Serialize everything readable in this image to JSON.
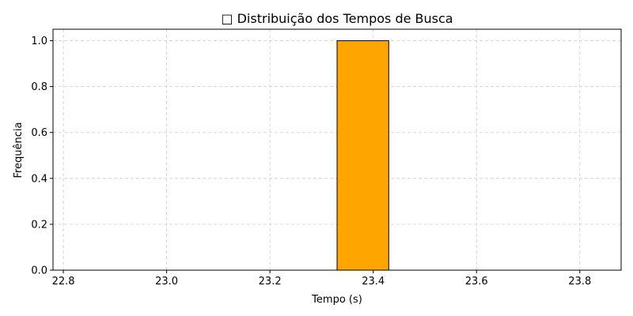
{
  "chart_data": {
    "type": "bar",
    "title": "□ Distribuição dos Tempos de Busca",
    "xlabel": "Tempo (s)",
    "ylabel": "Frequência",
    "bin_edges": [
      22.83,
      22.93,
      23.03,
      23.13,
      23.23,
      23.33,
      23.43,
      23.53,
      23.63,
      23.73,
      23.83
    ],
    "counts": [
      0,
      0,
      0,
      0,
      0,
      1,
      0,
      0,
      0,
      0
    ],
    "xlim": [
      22.78,
      23.88
    ],
    "ylim": [
      0,
      1.05
    ],
    "x_ticks": [
      22.8,
      23.0,
      23.2,
      23.4,
      23.6,
      23.8
    ],
    "x_tick_labels": [
      "22.8",
      "23.0",
      "23.2",
      "23.4",
      "23.6",
      "23.8"
    ],
    "y_ticks": [
      0.0,
      0.2,
      0.4,
      0.6,
      0.8,
      1.0
    ],
    "y_tick_labels": [
      "0.0",
      "0.2",
      "0.4",
      "0.6",
      "0.8",
      "1.0"
    ],
    "grid": true,
    "grid_style": "dashed",
    "bar_color": "#ffa500",
    "bar_edge_color": "#000000"
  }
}
